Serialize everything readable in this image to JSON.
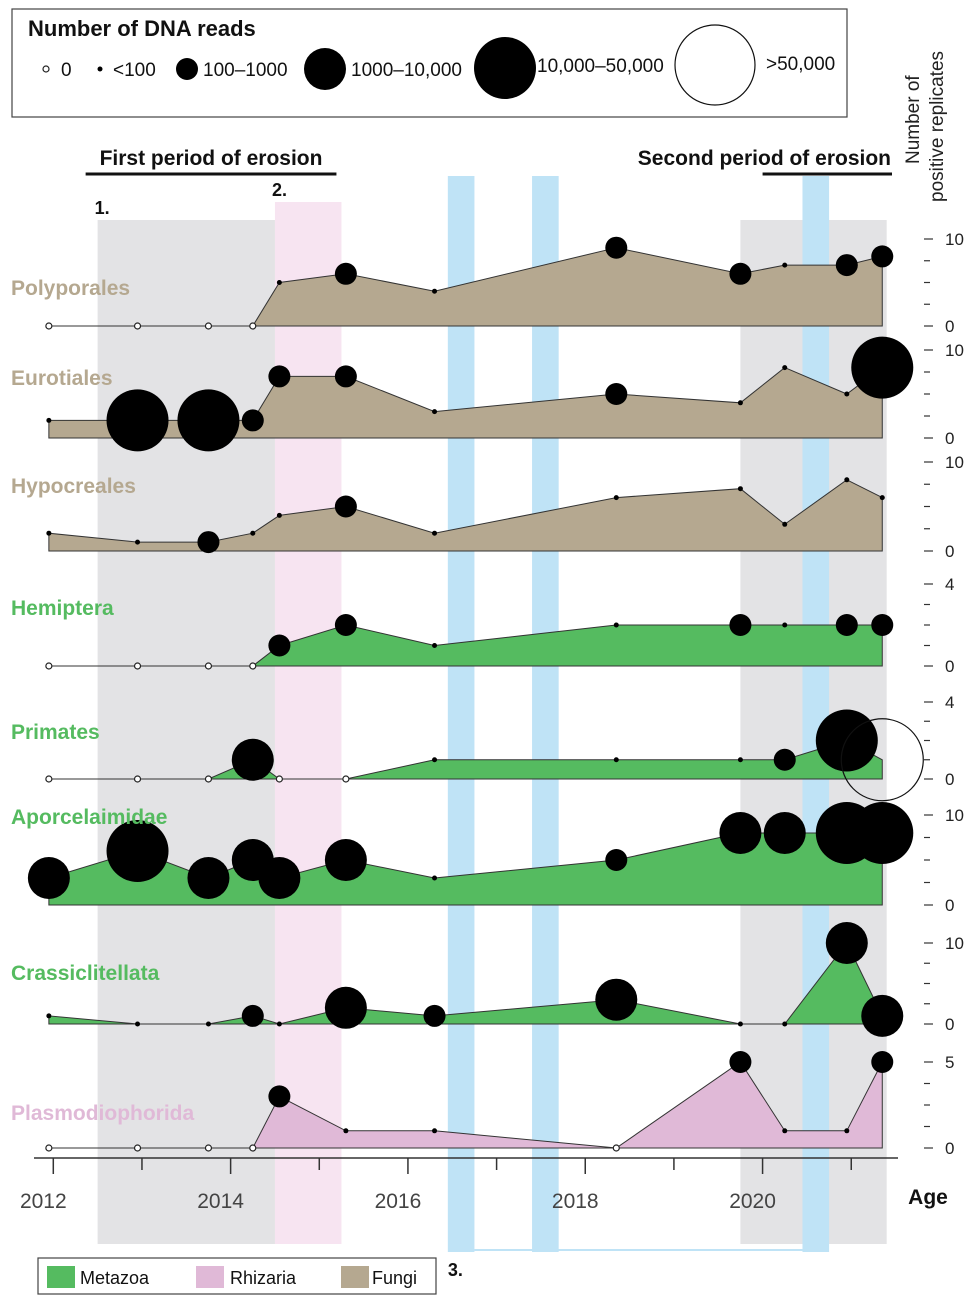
{
  "chart_data": {
    "type": "area",
    "x_axis": {
      "label": "Age",
      "ticks": [
        2012,
        2014,
        2016,
        2018,
        2020
      ],
      "minor_ticks": [
        2012,
        2013,
        2014,
        2015,
        2016,
        2017,
        2018,
        2019,
        2020,
        2021
      ],
      "range": [
        2011.85,
        2021.55
      ]
    },
    "y_axis_label": [
      "Number of",
      "positive replicates"
    ],
    "size_legend": {
      "title": "Number of DNA reads",
      "entries": [
        {
          "label": "0",
          "size_class": 0
        },
        {
          "label": "<100",
          "size_class": 1
        },
        {
          "label": "100–1000",
          "size_class": 2
        },
        {
          "label": "1000–10,000",
          "size_class": 3
        },
        {
          "label": "10,000–50,000",
          "size_class": 4
        },
        {
          "label": ">50,000",
          "size_class": 5
        }
      ]
    },
    "group_legend": [
      {
        "name": "Metazoa",
        "color": "#55bb60"
      },
      {
        "name": "Rhizaria",
        "color": "#e0b9d7"
      },
      {
        "name": "Fungi",
        "color": "#b5a890"
      }
    ],
    "periods": {
      "first_label": "First period of erosion",
      "second_label": "Second period of erosion",
      "first_range": [
        2012.5,
        2015.25
      ],
      "second_range": [
        2020.0,
        2021.55
      ]
    },
    "shaded_regions": [
      {
        "label": "1.",
        "type": "gray",
        "range": [
          2012.5,
          2014.5
        ]
      },
      {
        "label": "2.",
        "type": "pink",
        "range": [
          2014.5,
          2015.25
        ]
      },
      {
        "label": "",
        "type": "gray",
        "range": [
          2019.75,
          2021.4
        ]
      },
      {
        "label": "3.",
        "type": "blue",
        "range": [
          2016.45,
          2016.75
        ]
      },
      {
        "label": "",
        "type": "blue",
        "range": [
          2017.4,
          2017.7
        ]
      },
      {
        "label": "",
        "type": "blue",
        "range": [
          2020.45,
          2020.75
        ]
      }
    ],
    "series": [
      {
        "name": "Polyporales",
        "group": "Fungi",
        "ymax": 10,
        "ymax_label": "10",
        "ymin_label": "0",
        "points": [
          [
            2011.95,
            0,
            0
          ],
          [
            2012.95,
            0,
            0
          ],
          [
            2013.75,
            0,
            0
          ],
          [
            2014.25,
            0,
            0
          ],
          [
            2014.55,
            5,
            1
          ],
          [
            2015.3,
            6,
            2
          ],
          [
            2016.3,
            4,
            1
          ],
          [
            2018.35,
            9,
            2
          ],
          [
            2019.75,
            6,
            2
          ],
          [
            2020.25,
            7,
            1
          ],
          [
            2020.95,
            7,
            2
          ],
          [
            2021.35,
            8,
            2
          ]
        ]
      },
      {
        "name": "Eurotiales",
        "group": "Fungi",
        "ymax": 10,
        "ymax_label": "10",
        "ymin_label": "0",
        "points": [
          [
            2011.95,
            2,
            1
          ],
          [
            2012.95,
            2,
            4
          ],
          [
            2013.75,
            2,
            4
          ],
          [
            2014.25,
            2,
            2
          ],
          [
            2014.55,
            7,
            2
          ],
          [
            2015.3,
            7,
            2
          ],
          [
            2016.3,
            3,
            1
          ],
          [
            2018.35,
            5,
            2
          ],
          [
            2019.75,
            4,
            1
          ],
          [
            2020.25,
            8,
            1
          ],
          [
            2020.95,
            5,
            1
          ],
          [
            2021.35,
            8,
            4
          ]
        ]
      },
      {
        "name": "Hypocreales",
        "group": "Fungi",
        "ymax": 10,
        "ymax_label": "10",
        "ymin_label": "0",
        "points": [
          [
            2011.95,
            2,
            1
          ],
          [
            2012.95,
            1,
            1
          ],
          [
            2013.75,
            1,
            2
          ],
          [
            2014.25,
            2,
            1
          ],
          [
            2014.55,
            4,
            1
          ],
          [
            2015.3,
            5,
            2
          ],
          [
            2016.3,
            2,
            1
          ],
          [
            2018.35,
            6,
            1
          ],
          [
            2019.75,
            7,
            1
          ],
          [
            2020.25,
            3,
            1
          ],
          [
            2020.95,
            8,
            1
          ],
          [
            2021.35,
            6,
            1
          ]
        ]
      },
      {
        "name": "Hemiptera",
        "group": "Metazoa",
        "ymax": 4,
        "ymax_label": "4",
        "ymin_label": "0",
        "points": [
          [
            2011.95,
            0,
            0
          ],
          [
            2012.95,
            0,
            0
          ],
          [
            2013.75,
            0,
            0
          ],
          [
            2014.25,
            0,
            0
          ],
          [
            2014.55,
            1,
            2
          ],
          [
            2015.3,
            2,
            2
          ],
          [
            2016.3,
            1,
            1
          ],
          [
            2018.35,
            2,
            1
          ],
          [
            2019.75,
            2,
            2
          ],
          [
            2020.25,
            2,
            1
          ],
          [
            2020.95,
            2,
            2
          ],
          [
            2021.35,
            2,
            2
          ]
        ]
      },
      {
        "name": "Primates",
        "group": "Metazoa",
        "ymax": 4,
        "ymax_label": "4",
        "ymin_label": "0",
        "points": [
          [
            2011.95,
            0,
            0
          ],
          [
            2012.95,
            0,
            0
          ],
          [
            2013.75,
            0,
            0
          ],
          [
            2014.25,
            1,
            3
          ],
          [
            2014.55,
            0,
            0
          ],
          [
            2015.3,
            0,
            0
          ],
          [
            2016.3,
            1,
            1
          ],
          [
            2018.35,
            1,
            1
          ],
          [
            2019.75,
            1,
            1
          ],
          [
            2020.25,
            1,
            2
          ],
          [
            2020.95,
            2,
            4
          ],
          [
            2021.35,
            1,
            5
          ]
        ]
      },
      {
        "name": "Aporcelaimidae",
        "group": "Metazoa",
        "ymax": 10,
        "ymax_label": "10",
        "ymin_label": "0",
        "points": [
          [
            2011.95,
            3,
            3
          ],
          [
            2012.95,
            6,
            4
          ],
          [
            2013.75,
            3,
            3
          ],
          [
            2014.25,
            5,
            3
          ],
          [
            2014.55,
            3,
            3
          ],
          [
            2015.3,
            5,
            3
          ],
          [
            2016.3,
            3,
            1
          ],
          [
            2018.35,
            5,
            2
          ],
          [
            2019.75,
            8,
            3
          ],
          [
            2020.25,
            8,
            3
          ],
          [
            2020.95,
            8,
            4
          ],
          [
            2021.35,
            8,
            4
          ]
        ]
      },
      {
        "name": "Crassiclitellata",
        "group": "Metazoa",
        "ymax": 10,
        "ymax_label": "10",
        "ymin_label": "0",
        "points": [
          [
            2011.95,
            1,
            1
          ],
          [
            2012.95,
            0,
            1
          ],
          [
            2013.75,
            0,
            1
          ],
          [
            2014.25,
            1,
            2
          ],
          [
            2014.55,
            0,
            1
          ],
          [
            2015.3,
            2,
            3
          ],
          [
            2016.3,
            1,
            2
          ],
          [
            2018.35,
            3,
            3
          ],
          [
            2019.75,
            0,
            1
          ],
          [
            2020.25,
            0,
            1
          ],
          [
            2020.95,
            10,
            3
          ],
          [
            2021.35,
            1,
            3
          ]
        ]
      },
      {
        "name": "Plasmodiophorida",
        "group": "Rhizaria",
        "ymax": 5,
        "ymax_label": "5",
        "ymin_label": "0",
        "points": [
          [
            2011.95,
            0,
            0
          ],
          [
            2012.95,
            0,
            0
          ],
          [
            2013.75,
            0,
            0
          ],
          [
            2014.25,
            0,
            0
          ],
          [
            2014.55,
            3,
            2
          ],
          [
            2015.3,
            1,
            1
          ],
          [
            2016.3,
            1,
            1
          ],
          [
            2018.35,
            0,
            0
          ],
          [
            2019.75,
            5,
            2
          ],
          [
            2020.25,
            1,
            1
          ],
          [
            2020.95,
            1,
            1
          ],
          [
            2021.35,
            5,
            2
          ]
        ]
      }
    ]
  }
}
